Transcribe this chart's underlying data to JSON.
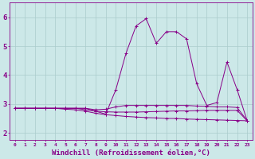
{
  "background_color": "#cce8e8",
  "grid_color": "#aacccc",
  "line_color": "#880088",
  "xlabel": "Windchill (Refroidissement éolien,°C)",
  "xlabel_fontsize": 6.5,
  "xtick_labels": [
    "0",
    "1",
    "2",
    "3",
    "4",
    "5",
    "6",
    "7",
    "8",
    "9",
    "10",
    "11",
    "12",
    "13",
    "14",
    "15",
    "16",
    "17",
    "18",
    "19",
    "20",
    "21",
    "22",
    "23"
  ],
  "ytick_labels": [
    "2",
    "3",
    "4",
    "5",
    "6"
  ],
  "ytick_vals": [
    2,
    3,
    4,
    5,
    6
  ],
  "ylim": [
    1.75,
    6.5
  ],
  "xlim": [
    -0.5,
    23.5
  ],
  "series": [
    [
      2.85,
      2.85,
      2.85,
      2.85,
      2.85,
      2.85,
      2.85,
      2.85,
      2.75,
      2.65,
      3.5,
      4.75,
      5.7,
      5.95,
      5.1,
      5.5,
      5.5,
      5.25,
      3.7,
      2.95,
      3.05,
      4.45,
      3.5,
      2.42
    ],
    [
      2.85,
      2.85,
      2.85,
      2.85,
      2.85,
      2.85,
      2.85,
      2.85,
      2.8,
      2.82,
      2.9,
      2.95,
      2.95,
      2.95,
      2.95,
      2.95,
      2.95,
      2.95,
      2.93,
      2.92,
      2.9,
      2.9,
      2.88,
      2.42
    ],
    [
      2.85,
      2.85,
      2.85,
      2.85,
      2.85,
      2.85,
      2.85,
      2.8,
      2.75,
      2.73,
      2.72,
      2.72,
      2.72,
      2.73,
      2.74,
      2.75,
      2.76,
      2.76,
      2.77,
      2.78,
      2.78,
      2.78,
      2.78,
      2.42
    ],
    [
      2.85,
      2.85,
      2.85,
      2.85,
      2.85,
      2.82,
      2.8,
      2.75,
      2.68,
      2.63,
      2.6,
      2.57,
      2.55,
      2.53,
      2.52,
      2.5,
      2.5,
      2.48,
      2.47,
      2.46,
      2.45,
      2.44,
      2.43,
      2.42
    ]
  ]
}
